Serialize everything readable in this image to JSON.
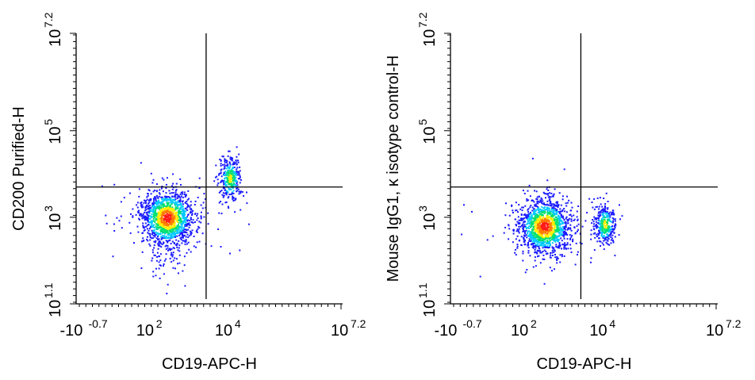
{
  "chart_data": [
    {
      "type": "scatter",
      "subtype": "flow-cytometry-density-plot",
      "xlabel": "CD19-APC-H",
      "ylabel": "CD200 Purified-H",
      "x_scale": "biexponential",
      "y_scale": "log",
      "x_tick_labels": [
        {
          "base": "-10",
          "exp": "-0.7"
        },
        {
          "base": "10",
          "exp": "2"
        },
        {
          "base": "10",
          "exp": "4"
        },
        {
          "base": "10",
          "exp": "7.2"
        }
      ],
      "y_tick_labels": [
        {
          "base": "10",
          "exp": "1.1"
        },
        {
          "base": "10",
          "exp": "3"
        },
        {
          "base": "10",
          "exp": "5"
        },
        {
          "base": "10",
          "exp": "7.2"
        }
      ],
      "quadrant_gate": {
        "x": 3000,
        "y": 5000
      },
      "populations": [
        {
          "x_center": 300,
          "y_center": 1000,
          "density": "high"
        },
        {
          "x_center": 12000,
          "y_center": 8000,
          "density": "medium"
        }
      ]
    },
    {
      "type": "scatter",
      "subtype": "flow-cytometry-density-plot",
      "xlabel": "CD19-APC-H",
      "ylabel": "Mouse IgG1, κ isotype control-H",
      "x_scale": "biexponential",
      "y_scale": "log",
      "x_tick_labels": [
        {
          "base": "-10",
          "exp": "-0.7"
        },
        {
          "base": "10",
          "exp": "2"
        },
        {
          "base": "10",
          "exp": "4"
        },
        {
          "base": "10",
          "exp": "7.2"
        }
      ],
      "y_tick_labels": [
        {
          "base": "10",
          "exp": "1.1"
        },
        {
          "base": "10",
          "exp": "3"
        },
        {
          "base": "10",
          "exp": "5"
        },
        {
          "base": "10",
          "exp": "7.2"
        }
      ],
      "quadrant_gate": {
        "x": 3000,
        "y": 5000
      },
      "populations": [
        {
          "x_center": 350,
          "y_center": 650,
          "density": "high"
        },
        {
          "x_center": 12000,
          "y_center": 700,
          "density": "medium"
        }
      ]
    }
  ],
  "colors": {
    "density_low": "#1a1aff",
    "density_mid_low": "#00c8ff",
    "density_mid": "#00e070",
    "density_mid_high": "#ffee00",
    "density_high": "#ff7a00",
    "density_peak": "#ff1a1a"
  }
}
